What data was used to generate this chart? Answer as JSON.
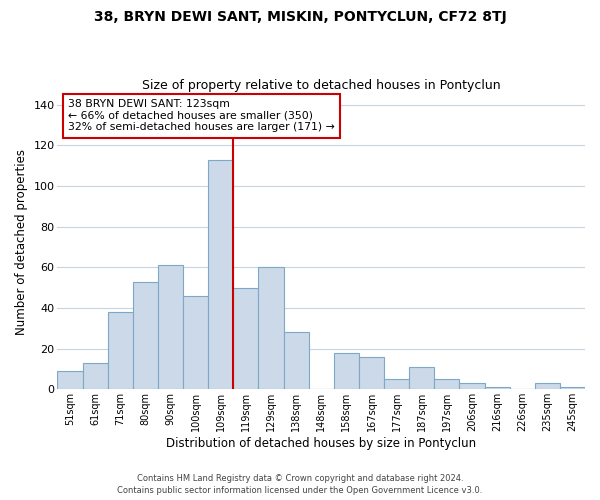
{
  "title": "38, BRYN DEWI SANT, MISKIN, PONTYCLUN, CF72 8TJ",
  "subtitle": "Size of property relative to detached houses in Pontyclun",
  "xlabel": "Distribution of detached houses by size in Pontyclun",
  "ylabel": "Number of detached properties",
  "categories": [
    "51sqm",
    "61sqm",
    "71sqm",
    "80sqm",
    "90sqm",
    "100sqm",
    "109sqm",
    "119sqm",
    "129sqm",
    "138sqm",
    "148sqm",
    "158sqm",
    "167sqm",
    "177sqm",
    "187sqm",
    "197sqm",
    "206sqm",
    "216sqm",
    "226sqm",
    "235sqm",
    "245sqm"
  ],
  "values": [
    9,
    13,
    38,
    53,
    61,
    46,
    113,
    50,
    60,
    28,
    0,
    18,
    16,
    5,
    11,
    5,
    3,
    1,
    0,
    3,
    1
  ],
  "bar_color": "#ccd9e8",
  "bar_edge_color": "#7fa8c8",
  "vline_color": "#cc0000",
  "vline_index": 7,
  "annotation_title": "38 BRYN DEWI SANT: 123sqm",
  "annotation_line1": "← 66% of detached houses are smaller (350)",
  "annotation_line2": "32% of semi-detached houses are larger (171) →",
  "annotation_box_edge": "#cc0000",
  "ylim": [
    0,
    145
  ],
  "footer1": "Contains HM Land Registry data © Crown copyright and database right 2024.",
  "footer2": "Contains public sector information licensed under the Open Government Licence v3.0.",
  "background_color": "#ffffff",
  "grid_color": "#c8d4e0",
  "title_fontsize": 10,
  "subtitle_fontsize": 9
}
